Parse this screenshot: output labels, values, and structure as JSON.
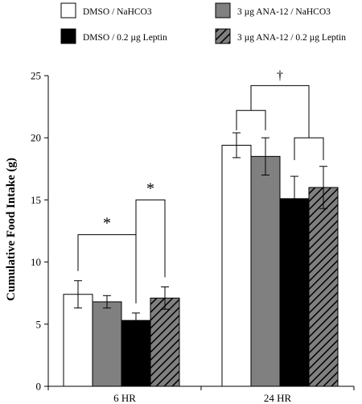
{
  "chart_data": {
    "type": "bar",
    "title": "",
    "xlabel": "",
    "ylabel": "Cumulative Food Intake (g)",
    "ylim": [
      0,
      25
    ],
    "yticks": [
      0,
      5,
      10,
      15,
      20,
      25
    ],
    "categories": [
      "6 HR",
      "24 HR"
    ],
    "series": [
      {
        "name": "DMSO / NaHCO3",
        "fill": "#ffffff",
        "pattern": "none",
        "values": [
          7.4,
          19.4
        ],
        "errors": [
          1.1,
          1.0
        ]
      },
      {
        "name": "3 µg ANA-12 / NaHCO3",
        "fill": "#808080",
        "pattern": "none",
        "values": [
          6.8,
          18.5
        ],
        "errors": [
          0.5,
          1.5
        ]
      },
      {
        "name": "DMSO / 0.2 µg Leptin",
        "fill": "#000000",
        "pattern": "none",
        "values": [
          5.3,
          15.1
        ],
        "errors": [
          0.6,
          1.8
        ]
      },
      {
        "name": "3 µg ANA-12 / 0.2 µg Leptin",
        "fill": "#808080",
        "pattern": "hatch",
        "values": [
          7.1,
          16.0
        ],
        "errors": [
          0.9,
          1.7
        ]
      }
    ],
    "legend_position": "top",
    "annotations": [
      {
        "symbol": "*",
        "category": "6 HR",
        "comparison": "DMSO / NaHCO3 vs DMSO / 0.2 µg Leptin"
      },
      {
        "symbol": "*",
        "category": "6 HR",
        "comparison": "DMSO / 0.2 µg Leptin vs 3 µg ANA-12 / 0.2 µg Leptin"
      },
      {
        "symbol": "†",
        "category": "24 HR",
        "comparison": "NaHCO3 groups vs Leptin groups"
      }
    ]
  }
}
